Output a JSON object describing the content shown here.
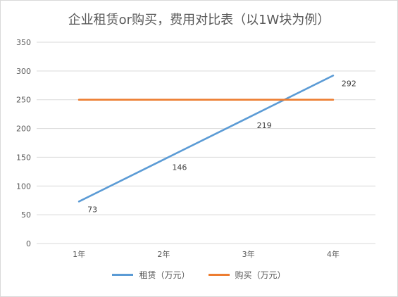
{
  "chart_data": {
    "type": "line",
    "title": "企业租赁or购买，费用对比表（以1W块为例）",
    "categories": [
      "1年",
      "2年",
      "3年",
      "4年"
    ],
    "ylim": [
      0,
      350
    ],
    "yticks": [
      0,
      50,
      100,
      150,
      200,
      250,
      300,
      350
    ],
    "grid": true,
    "legend_position": "bottom",
    "series": [
      {
        "name": "租赁（万元）",
        "values": [
          73,
          146,
          219,
          292
        ],
        "color": "#5b9bd5",
        "data_labels": true
      },
      {
        "name": "购买（万元）",
        "values": [
          250,
          250,
          250,
          250
        ],
        "color": "#ed7d31",
        "data_labels": false
      }
    ]
  }
}
